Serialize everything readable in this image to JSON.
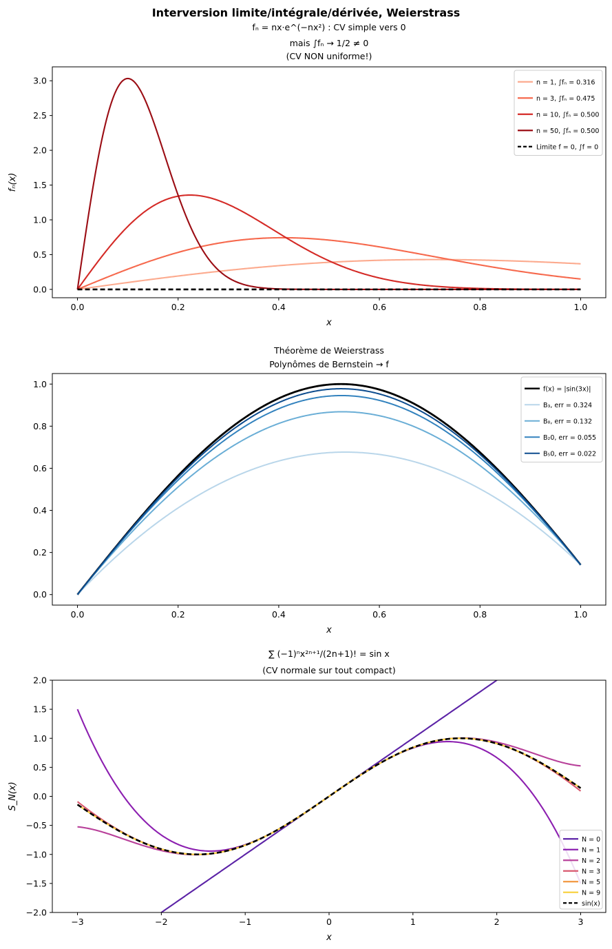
{
  "suptitle": "Interversion limite/intégrale/dérivée, Weierstrass",
  "chart_data": [
    {
      "type": "line",
      "title_lines": [
        "fₙ = nx·e^(−nx²) : CV simple vers 0",
        "mais ∫fₙ → 1/2 ≠ 0",
        "(CV NON uniforme!)"
      ],
      "xlabel": "x",
      "ylabel": "fₙ(x)",
      "xlim": [
        -0.05,
        1.05
      ],
      "ylim": [
        -0.12,
        3.2
      ],
      "xticks": [
        0.0,
        0.2,
        0.4,
        0.6,
        0.8,
        1.0
      ],
      "xtick_labels": [
        "0.0",
        "0.2",
        "0.4",
        "0.6",
        "0.8",
        "1.0"
      ],
      "yticks": [
        0.0,
        0.5,
        1.0,
        1.5,
        2.0,
        2.5,
        3.0
      ],
      "ytick_labels": [
        "0.0",
        "0.5",
        "1.0",
        "1.5",
        "2.0",
        "2.5",
        "3.0"
      ],
      "legend_position": "top-right",
      "series": [
        {
          "name": "n = 1, ∫fₙ = 0.316",
          "n": 1,
          "color": "#fcaa8e",
          "dash": false
        },
        {
          "name": "n = 3, ∫fₙ = 0.475",
          "n": 3,
          "color": "#f6694d",
          "dash": false
        },
        {
          "name": "n = 10, ∫fₙ = 0.500",
          "n": 10,
          "color": "#d42a26",
          "dash": false
        },
        {
          "name": "n = 50, ∫fₙ = 0.500",
          "n": 50,
          "color": "#9b0d14",
          "dash": false
        },
        {
          "name": "Limite f = 0, ∫f = 0",
          "n": 0,
          "color": "#000000",
          "dash": true
        }
      ]
    },
    {
      "type": "line",
      "title_lines": [
        "Théorème de Weierstrass",
        "Polynômes de Bernstein → f"
      ],
      "xlabel": "x",
      "ylabel": "",
      "xlim": [
        -0.05,
        1.05
      ],
      "ylim": [
        -0.05,
        1.05
      ],
      "xticks": [
        0.0,
        0.2,
        0.4,
        0.6,
        0.8,
        1.0
      ],
      "xtick_labels": [
        "0.0",
        "0.2",
        "0.4",
        "0.6",
        "0.8",
        "1.0"
      ],
      "yticks": [
        0.0,
        0.2,
        0.4,
        0.6,
        0.8,
        1.0
      ],
      "ytick_labels": [
        "0.0",
        "0.2",
        "0.4",
        "0.6",
        "0.8",
        "1.0"
      ],
      "legend_position": "top-right",
      "series": [
        {
          "name": "f(x) = |sin(3x)|",
          "n": 0,
          "color": "#000000",
          "width": 2.8
        },
        {
          "name": "B₃, err = 0.324",
          "n": 3,
          "color": "#b9d6ea",
          "width": 2
        },
        {
          "name": "B₈, err = 0.132",
          "n": 8,
          "color": "#6aaed6",
          "width": 2
        },
        {
          "name": "B₂0, err = 0.055",
          "n": 20,
          "color": "#3282be",
          "width": 2
        },
        {
          "name": "B₅0, err = 0.022",
          "n": 50,
          "color": "#0d4c8e",
          "width": 2
        }
      ]
    },
    {
      "type": "line",
      "title_lines": [
        "∑ (−1)ⁿx²ⁿ⁺¹/(2n+1)! = sin x",
        "(CV normale sur tout compact)"
      ],
      "xlabel": "x",
      "ylabel": "S_N(x)",
      "xlim": [
        -3.3,
        3.3
      ],
      "ylim": [
        -2.0,
        2.0
      ],
      "xticks": [
        -3,
        -2,
        -1,
        0,
        1,
        2,
        3
      ],
      "xtick_labels": [
        "−3",
        "−2",
        "−1",
        "0",
        "1",
        "2",
        "3"
      ],
      "yticks": [
        -2.0,
        -1.5,
        -1.0,
        -0.5,
        0.0,
        0.5,
        1.0,
        1.5,
        2.0
      ],
      "ytick_labels": [
        "−2.0",
        "−1.5",
        "−1.0",
        "−0.5",
        "0.0",
        "0.5",
        "1.0",
        "1.5",
        "2.0"
      ],
      "legend_position": "bottom-right",
      "series": [
        {
          "name": "N = 0",
          "N": 0,
          "color": "#5b22a6",
          "dash": false
        },
        {
          "name": "N = 1",
          "N": 1,
          "color": "#8c1fb0",
          "dash": false
        },
        {
          "name": "N = 2",
          "N": 2,
          "color": "#b8409a",
          "dash": false
        },
        {
          "name": "N = 3",
          "N": 3,
          "color": "#d9586e",
          "dash": false
        },
        {
          "name": "N = 5",
          "N": 5,
          "color": "#f2973f",
          "dash": false
        },
        {
          "name": "N = 9",
          "N": 9,
          "color": "#f8d343",
          "dash": false
        },
        {
          "name": "sin(x)",
          "N": -1,
          "color": "#000000",
          "dash": true
        }
      ]
    }
  ]
}
